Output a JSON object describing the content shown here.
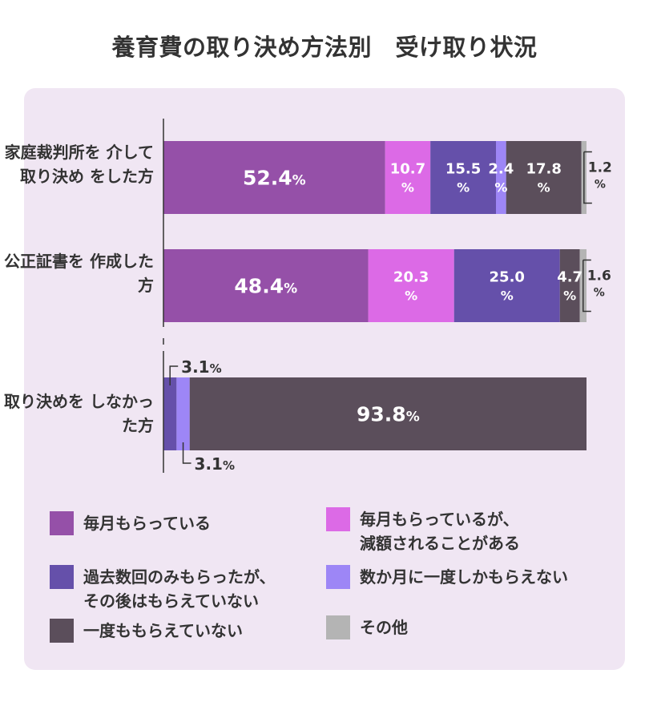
{
  "chart_data": {
    "type": "bar",
    "orientation": "horizontal",
    "stacked": true,
    "title": "養育費の取り決め方法別　受け取り状況",
    "xlim": [
      0,
      100
    ],
    "unit": "%",
    "categories": [
      "家庭裁判所を\n介して取り決め\nをした方",
      "公正証書を\n作成した方",
      "取り決めを\nしなかった方"
    ],
    "legend_placement": "bottom",
    "series": [
      {
        "name": "毎月もらっている",
        "color": "#9550a8",
        "values": [
          52.4,
          48.4,
          0
        ]
      },
      {
        "name": "毎月もらっているが、\n減額されることがある",
        "color": "#dc6ae6",
        "values": [
          10.7,
          20.3,
          0
        ]
      },
      {
        "name": "過去数回のみもらったが、\nその後はもらえていない",
        "color": "#6550aa",
        "values": [
          15.5,
          25.0,
          3.1
        ]
      },
      {
        "name": "数か月に一度しかもらえない",
        "color": "#9d86f6",
        "values": [
          2.4,
          0,
          3.1
        ]
      },
      {
        "name": "一度ももらえていない",
        "color": "#5b4e5b",
        "values": [
          17.8,
          4.7,
          93.8
        ]
      },
      {
        "name": "その他",
        "color": "#b4b4b4",
        "values": [
          1.2,
          1.6,
          0
        ]
      }
    ]
  }
}
